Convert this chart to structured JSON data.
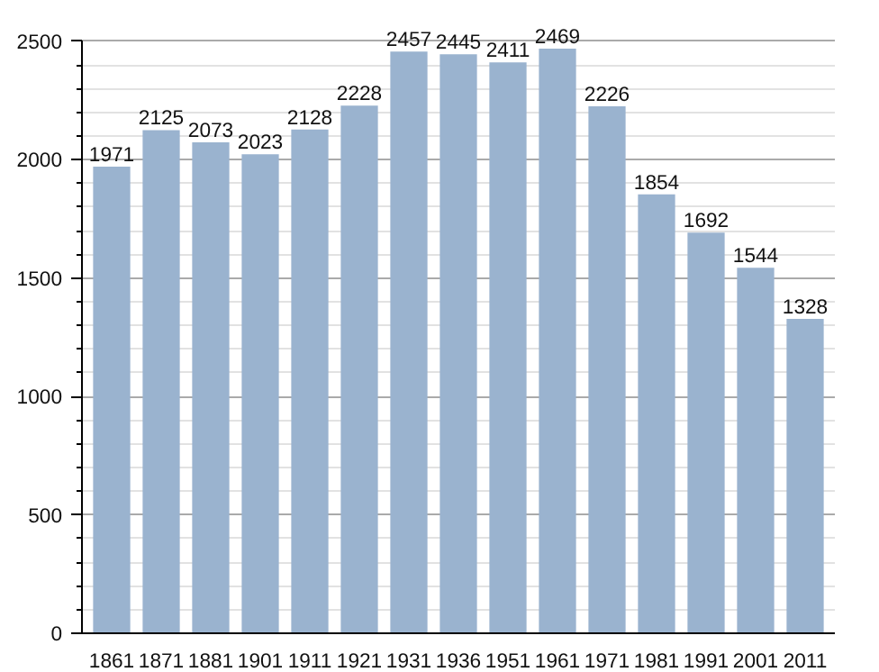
{
  "chart_data": {
    "type": "bar",
    "categories": [
      "1861",
      "1871",
      "1881",
      "1901",
      "1911",
      "1921",
      "1931",
      "1936",
      "1951",
      "1961",
      "1971",
      "1981",
      "1991",
      "2001",
      "2011"
    ],
    "values": [
      1971,
      2125,
      2073,
      2023,
      2128,
      2228,
      2457,
      2445,
      2411,
      2469,
      2226,
      1854,
      1692,
      1544,
      1328
    ],
    "color": "#9ab3cf",
    "ylim": [
      0,
      2500
    ],
    "yticks": [
      0,
      500,
      1000,
      1500,
      2000,
      2500
    ],
    "grid": "y",
    "data_labels": true
  }
}
